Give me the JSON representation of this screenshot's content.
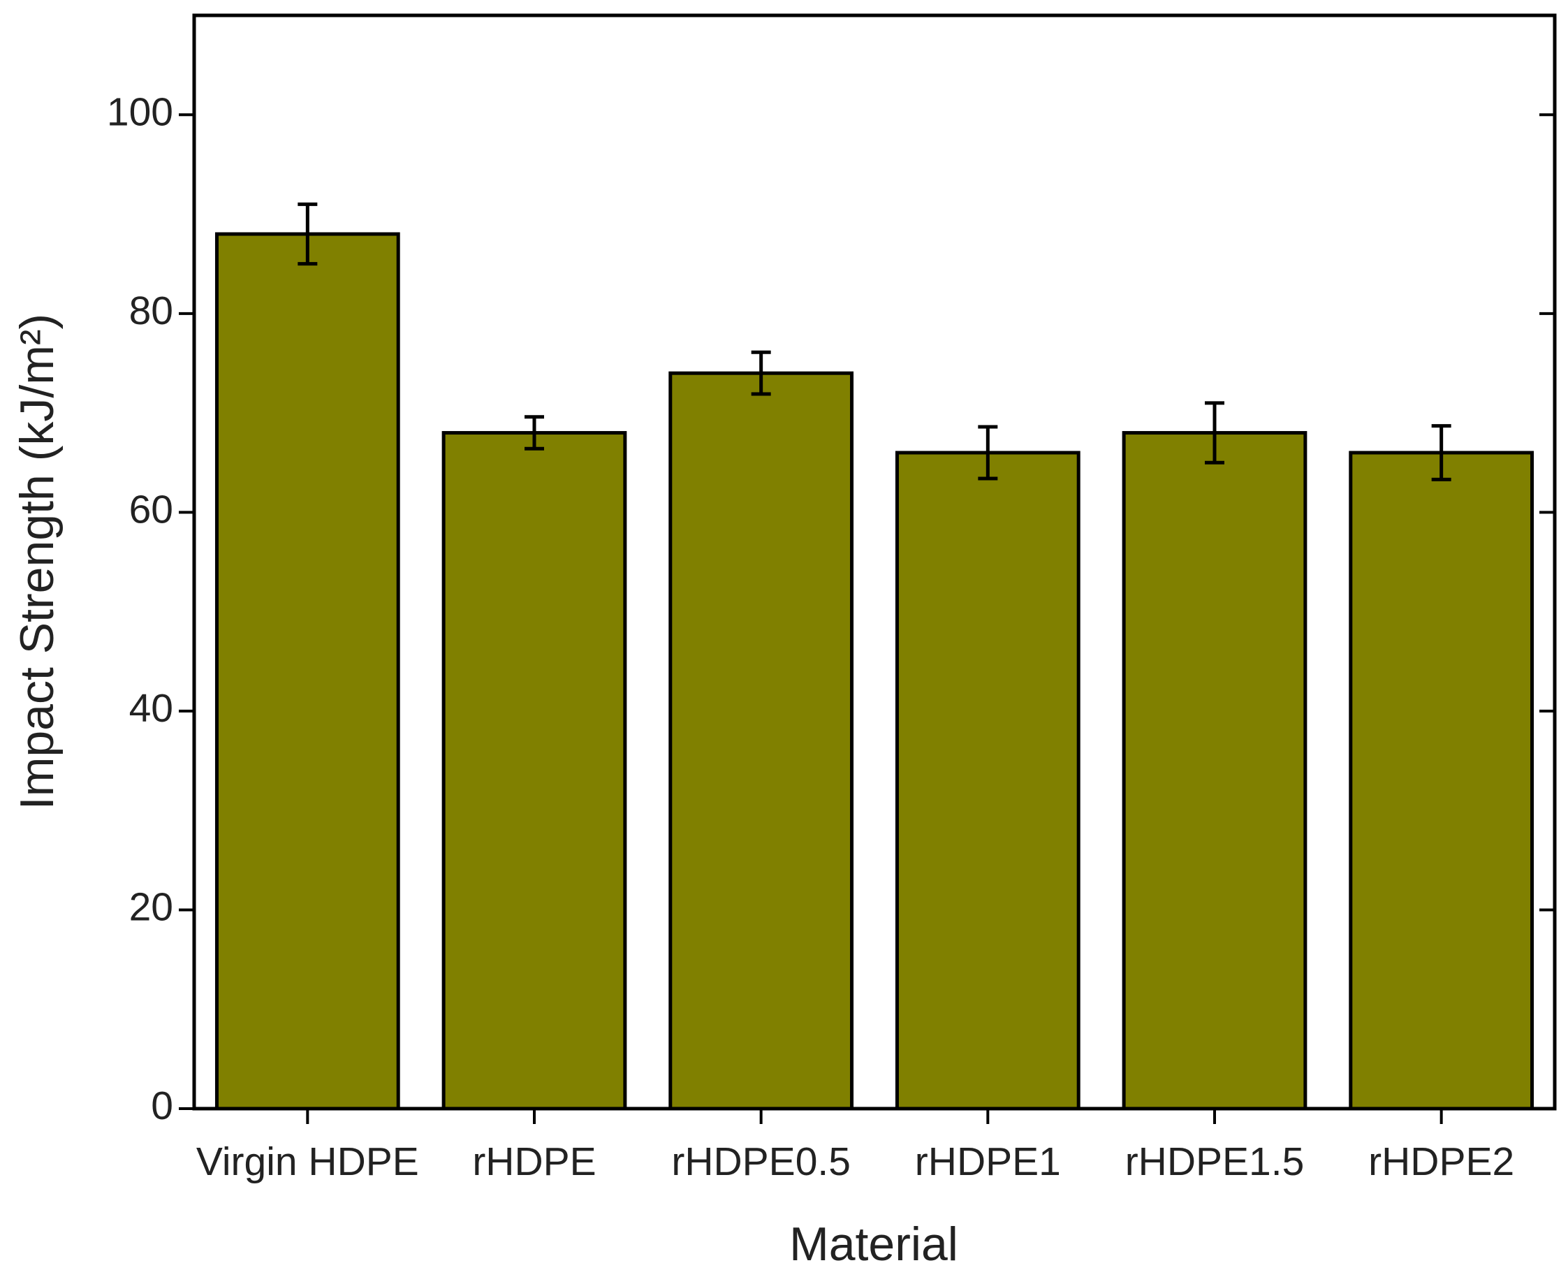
{
  "chart_data": {
    "type": "bar",
    "x_label": "Material",
    "y_label": "Impact Strength (kJ/m²)",
    "categories": [
      "Virgin HDPE",
      "rHDPE",
      "rHDPE0.5",
      "rHDPE1",
      "rHDPE1.5",
      "rHDPE2"
    ],
    "values": [
      88,
      68,
      74,
      66,
      68,
      66
    ],
    "errors": [
      3,
      1.6,
      2.1,
      2.6,
      3,
      2.7
    ],
    "color": "#808000",
    "ylim": [
      0,
      110
    ],
    "yticks": [
      0,
      20,
      40,
      60,
      80,
      100
    ],
    "grid": false
  }
}
